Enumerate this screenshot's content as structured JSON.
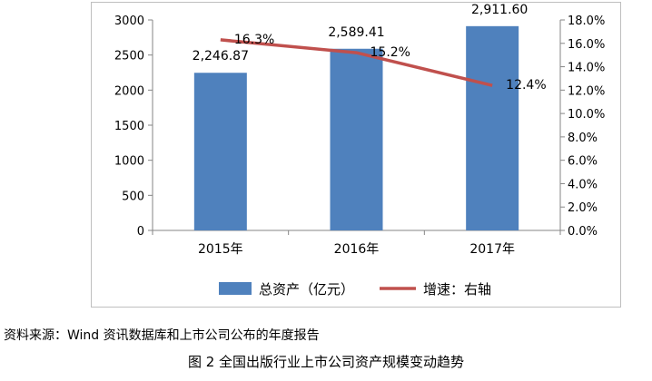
{
  "chart_data": {
    "type": "bar",
    "categories": [
      "2015年",
      "2016年",
      "2017年"
    ],
    "series": [
      {
        "name": "总资产（亿元）",
        "kind": "bar",
        "axis": "left",
        "values": [
          2246.87,
          2589.41,
          2911.6
        ],
        "labels": [
          "2,246.87",
          "2,589.41",
          "2,911.60"
        ],
        "color": "#4f81bd"
      },
      {
        "name": "增速：右轴",
        "kind": "line",
        "axis": "right",
        "values": [
          16.3,
          15.2,
          12.4
        ],
        "labels": [
          "16.3%",
          "15.2%",
          "12.4%"
        ],
        "color": "#c0504d"
      }
    ],
    "left_axis": {
      "ylim": [
        0,
        3000
      ],
      "ticks": [
        "0",
        "500",
        "1000",
        "1500",
        "2000",
        "2500",
        "3000"
      ]
    },
    "right_axis": {
      "ylim": [
        0,
        18
      ],
      "ticks": [
        "0.0%",
        "2.0%",
        "4.0%",
        "6.0%",
        "8.0%",
        "10.0%",
        "12.0%",
        "14.0%",
        "16.0%",
        "18.0%"
      ]
    },
    "legend": {
      "position": "bottom"
    }
  },
  "source_text": "资料来源：Wind 资讯数据库和上市公司公布的年度报告",
  "caption_text": "图 2  全国出版行业上市公司资产规模变动趋势"
}
